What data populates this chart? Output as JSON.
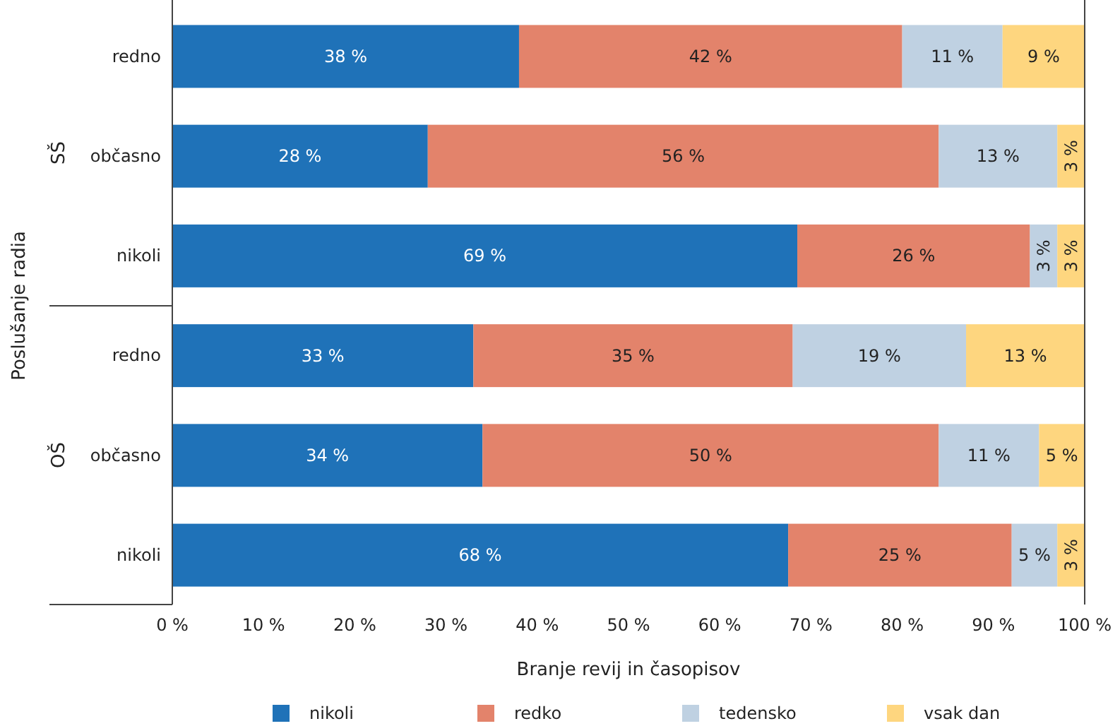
{
  "chart_data": {
    "type": "bar",
    "orientation": "horizontal",
    "stacked": true,
    "xlabel": "Branje revij in časopisov",
    "ylabel": "Poslušanje radia",
    "annotations": [
      "SŠ",
      "OŠ"
    ],
    "categories": [
      "redno",
      "občasno",
      "nikoli",
      "redno",
      "občasno",
      "nikoli"
    ],
    "series": [
      {
        "name": "nikoli",
        "color": "#1f72b8",
        "values": [
          38,
          28,
          68.5,
          33,
          34,
          67.5
        ],
        "value_labels": [
          "38 %",
          "28 %",
          "69 %",
          "33 %",
          "34 %",
          "68 %"
        ]
      },
      {
        "name": "redko",
        "color": "#e3836b",
        "values": [
          42,
          56,
          25.5,
          35,
          50,
          24.5
        ],
        "value_labels": [
          "42 %",
          "56 %",
          "26 %",
          "35 %",
          "50 %",
          "25 %"
        ]
      },
      {
        "name": "tedensko",
        "color": "#bfd1e2",
        "values": [
          11,
          13,
          3,
          19,
          11,
          5
        ],
        "value_labels": [
          "11 %",
          "13 %",
          "3 %",
          "19 %",
          "11 %",
          "5 %"
        ]
      },
      {
        "name": "vsak dan",
        "color": "#fed67f",
        "values": [
          9,
          3,
          3,
          13,
          5,
          3
        ],
        "value_labels": [
          "9 %",
          "3 %",
          "3 %",
          "13 %",
          "5 %",
          "3 %"
        ]
      }
    ],
    "xlim": [
      0,
      100
    ],
    "xticks": [
      {
        "value": 0,
        "label": "0 %"
      },
      {
        "value": 10,
        "label": "10 %"
      },
      {
        "value": 20,
        "label": "20 %"
      },
      {
        "value": 30,
        "label": "30 %"
      },
      {
        "value": 40,
        "label": "40 %"
      },
      {
        "value": 50,
        "label": "50 %"
      },
      {
        "value": 60,
        "label": "60 %"
      },
      {
        "value": 70,
        "label": "70 %"
      },
      {
        "value": 80,
        "label": "80 %"
      },
      {
        "value": 90,
        "label": "90 %"
      },
      {
        "value": 100,
        "label": "100 %"
      }
    ],
    "legend": "bottom"
  }
}
